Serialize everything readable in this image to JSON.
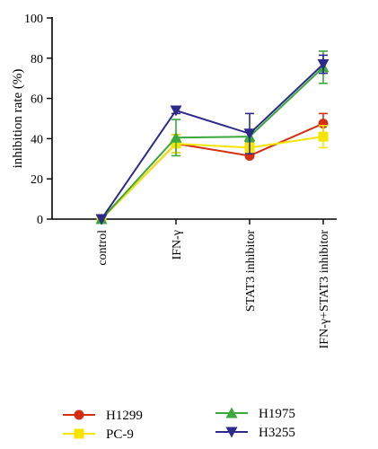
{
  "chart_data": {
    "type": "line",
    "ylabel": "inhibition rate (%)",
    "xlabel": "",
    "title": "",
    "ylim": [
      0,
      100
    ],
    "yticks": [
      0,
      20,
      40,
      60,
      80,
      100
    ],
    "categories": [
      "control",
      "IFN-γ",
      "STAT3 inhibitor",
      "IFN-γ+STAT3 inhibitor"
    ],
    "grid": false,
    "legend_placement": "bottom",
    "series": [
      {
        "name": "H1299",
        "color": "#d62e12",
        "marker": "circle",
        "values": [
          0,
          37.5,
          31.5,
          47.5
        ],
        "errors": [
          0,
          4.5,
          1,
          5
        ]
      },
      {
        "name": "PC-9",
        "color": "#f5e400",
        "marker": "square",
        "values": [
          0,
          37.5,
          35.5,
          41
        ],
        "errors": [
          0,
          4.5,
          2.5,
          5.5
        ]
      },
      {
        "name": "H1975",
        "color": "#3aa83c",
        "marker": "triangle-up",
        "values": [
          0,
          40.5,
          41,
          75.5
        ],
        "errors": [
          0,
          9,
          2.5,
          8
        ]
      },
      {
        "name": "H3255",
        "color": "#2e2a8c",
        "marker": "triangle-down",
        "values": [
          0,
          54,
          42.5,
          77
        ],
        "errors": [
          0,
          1.5,
          10,
          4.5
        ]
      }
    ]
  }
}
